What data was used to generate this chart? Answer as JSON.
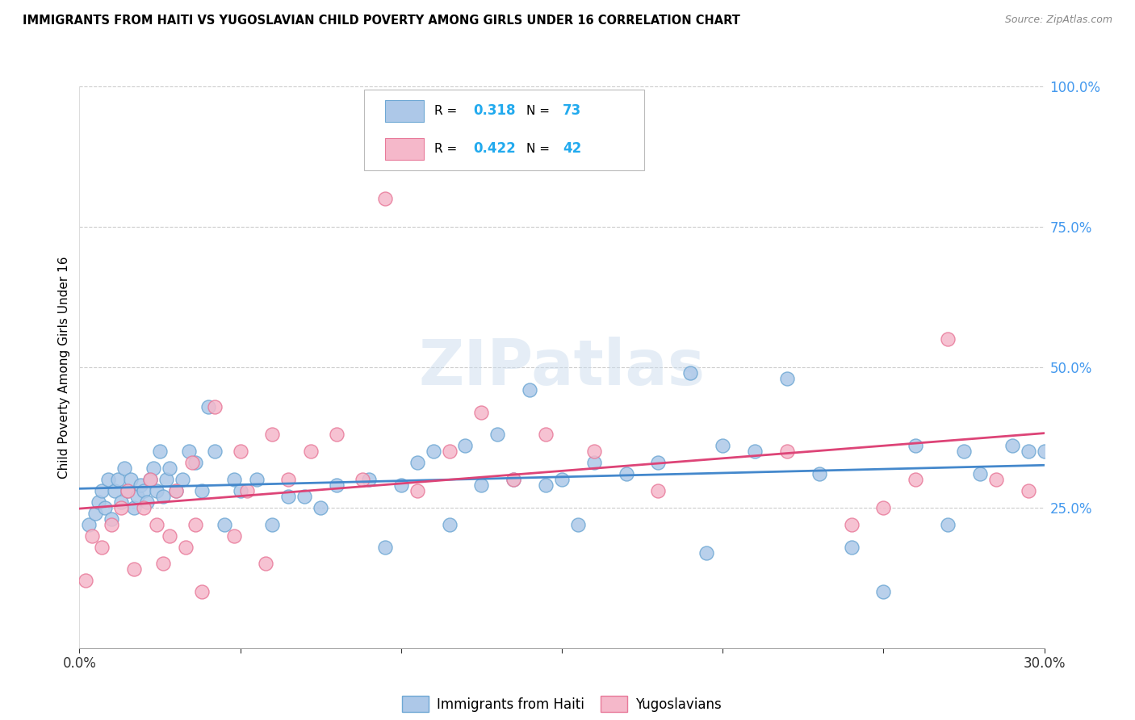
{
  "title": "IMMIGRANTS FROM HAITI VS YUGOSLAVIAN CHILD POVERTY AMONG GIRLS UNDER 16 CORRELATION CHART",
  "source": "Source: ZipAtlas.com",
  "ylabel": "Child Poverty Among Girls Under 16",
  "xmin": 0.0,
  "xmax": 30.0,
  "ymin": 0.0,
  "ymax": 100.0,
  "right_yticks": [
    25.0,
    50.0,
    75.0,
    100.0
  ],
  "right_yticklabels": [
    "25.0%",
    "50.0%",
    "75.0%",
    "100.0%"
  ],
  "watermark": "ZIPatlas",
  "legend_labels_bottom": [
    "Immigrants from Haiti",
    "Yugoslavians"
  ],
  "haiti_color": "#adc8e8",
  "yugoslav_color": "#f5b8ca",
  "haiti_edge": "#6fa8d4",
  "yugoslav_edge": "#e87a9a",
  "haiti_line_color": "#4488cc",
  "yugoslav_line_color": "#dd4477",
  "haiti_R": 0.318,
  "haiti_N": 73,
  "yugoslav_R": 0.422,
  "yugoslav_N": 42,
  "haiti_scatter_x": [
    0.3,
    0.5,
    0.6,
    0.7,
    0.8,
    0.9,
    1.0,
    1.1,
    1.2,
    1.3,
    1.4,
    1.5,
    1.6,
    1.7,
    1.8,
    1.9,
    2.0,
    2.1,
    2.2,
    2.3,
    2.4,
    2.5,
    2.6,
    2.7,
    2.8,
    3.0,
    3.2,
    3.4,
    3.6,
    3.8,
    4.0,
    4.2,
    4.5,
    4.8,
    5.0,
    5.5,
    6.0,
    6.5,
    7.0,
    7.5,
    8.0,
    9.0,
    9.5,
    10.0,
    10.5,
    11.0,
    11.5,
    12.0,
    12.5,
    13.0,
    13.5,
    14.0,
    14.5,
    15.0,
    15.5,
    16.0,
    17.0,
    18.0,
    19.0,
    19.5,
    20.0,
    21.0,
    22.0,
    23.0,
    24.0,
    25.0,
    26.0,
    27.0,
    27.5,
    28.0,
    29.0,
    29.5,
    30.0
  ],
  "haiti_scatter_y": [
    22,
    24,
    26,
    28,
    25,
    30,
    23,
    28,
    30,
    26,
    32,
    28,
    30,
    25,
    27,
    29,
    28,
    26,
    30,
    32,
    28,
    35,
    27,
    30,
    32,
    28,
    30,
    35,
    33,
    28,
    43,
    35,
    22,
    30,
    28,
    30,
    22,
    27,
    27,
    25,
    29,
    30,
    18,
    29,
    33,
    35,
    22,
    36,
    29,
    38,
    30,
    46,
    29,
    30,
    22,
    33,
    31,
    33,
    49,
    17,
    36,
    35,
    48,
    31,
    18,
    10,
    36,
    22,
    35,
    31,
    36,
    35,
    35
  ],
  "yugoslav_scatter_x": [
    0.2,
    0.4,
    0.7,
    1.0,
    1.3,
    1.5,
    1.7,
    2.0,
    2.2,
    2.4,
    2.6,
    2.8,
    3.0,
    3.3,
    3.6,
    3.8,
    4.2,
    4.8,
    5.2,
    5.8,
    6.5,
    7.2,
    8.0,
    8.8,
    9.5,
    10.5,
    11.5,
    12.5,
    13.5,
    14.5,
    16.0,
    18.0,
    22.0,
    24.0,
    25.0,
    26.0,
    27.0,
    28.5,
    29.5,
    3.5,
    5.0,
    6.0
  ],
  "yugoslav_scatter_y": [
    12,
    20,
    18,
    22,
    25,
    28,
    14,
    25,
    30,
    22,
    15,
    20,
    28,
    18,
    22,
    10,
    43,
    20,
    28,
    15,
    30,
    35,
    38,
    30,
    80,
    28,
    35,
    42,
    30,
    38,
    35,
    28,
    35,
    22,
    25,
    30,
    55,
    30,
    28,
    33,
    35,
    38
  ]
}
